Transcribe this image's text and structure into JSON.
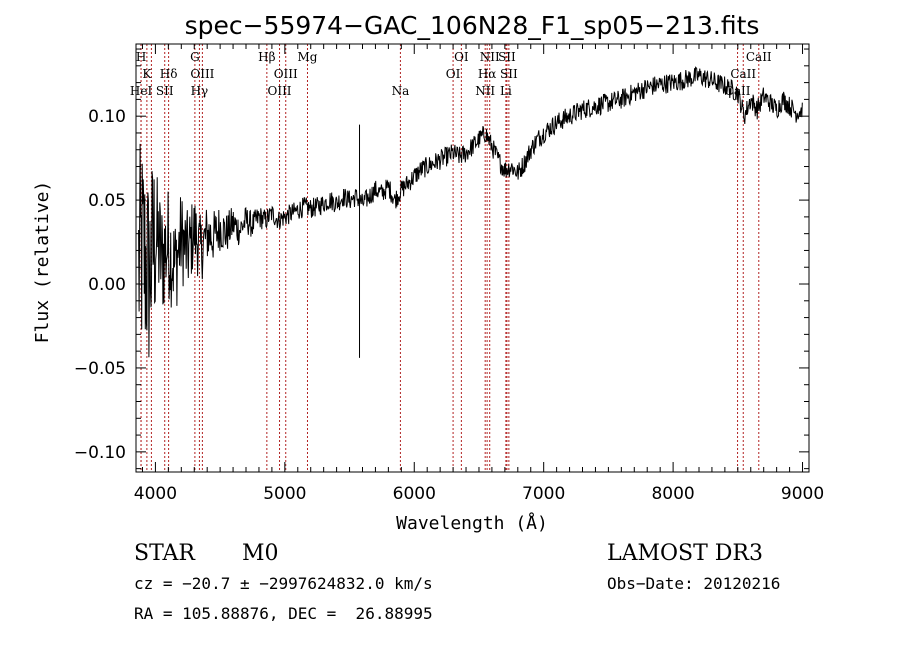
{
  "chart_data": {
    "type": "line",
    "title": "spec−55974−GAC_106N28_F1_sp05−213.fits",
    "xlabel": "Wavelength (Å)",
    "ylabel": "Flux (relative)",
    "xlim": [
      3850,
      9050
    ],
    "ylim": [
      -0.112,
      0.143
    ],
    "xticks": [
      4000,
      5000,
      6000,
      7000,
      8000,
      9000
    ],
    "yticks": [
      -0.1,
      -0.05,
      0.0,
      0.05,
      0.1
    ],
    "xtick_labels": [
      "4000",
      "5000",
      "6000",
      "7000",
      "8000",
      "9000"
    ],
    "ytick_labels": [
      "−0.10",
      "−0.05",
      "0.00",
      "0.05",
      "0.10"
    ],
    "spectrum": {
      "x": [
        3870,
        3900,
        3950,
        4000,
        4050,
        4100,
        4150,
        4200,
        4250,
        4300,
        4350,
        4400,
        4450,
        4500,
        4550,
        4600,
        4650,
        4700,
        4750,
        4800,
        4850,
        4900,
        4950,
        5000,
        5050,
        5100,
        5150,
        5200,
        5250,
        5300,
        5350,
        5400,
        5450,
        5500,
        5550,
        5600,
        5650,
        5700,
        5750,
        5800,
        5850,
        5900,
        5950,
        6000,
        6050,
        6100,
        6150,
        6200,
        6250,
        6300,
        6350,
        6400,
        6450,
        6500,
        6550,
        6600,
        6650,
        6700,
        6750,
        6800,
        6850,
        6900,
        6950,
        7000,
        7100,
        7200,
        7300,
        7400,
        7500,
        7600,
        7700,
        7800,
        7900,
        8000,
        8100,
        8200,
        8300,
        8400,
        8500,
        8550,
        8600,
        8650,
        8700,
        8750,
        8800,
        8850,
        8900,
        8950,
        9000
      ],
      "y": [
        0.01,
        0.02,
        0.005,
        0.03,
        0.015,
        0.025,
        0.01,
        0.028,
        0.018,
        0.032,
        0.02,
        0.03,
        0.028,
        0.034,
        0.03,
        0.036,
        0.032,
        0.038,
        0.035,
        0.04,
        0.038,
        0.042,
        0.038,
        0.04,
        0.042,
        0.044,
        0.046,
        0.045,
        0.046,
        0.048,
        0.05,
        0.048,
        0.052,
        0.05,
        0.052,
        0.048,
        0.052,
        0.056,
        0.054,
        0.058,
        0.05,
        0.056,
        0.06,
        0.064,
        0.068,
        0.07,
        0.072,
        0.074,
        0.076,
        0.078,
        0.076,
        0.078,
        0.082,
        0.086,
        0.09,
        0.082,
        0.074,
        0.068,
        0.07,
        0.066,
        0.072,
        0.08,
        0.086,
        0.09,
        0.096,
        0.1,
        0.104,
        0.106,
        0.108,
        0.11,
        0.114,
        0.117,
        0.119,
        0.12,
        0.122,
        0.124,
        0.121,
        0.118,
        0.114,
        0.1,
        0.11,
        0.104,
        0.112,
        0.108,
        0.104,
        0.11,
        0.106,
        0.102,
        0.104
      ],
      "noise_amplitude_blue": 0.045,
      "noise_amplitude_red": 0.006,
      "spike": {
        "x": 5577,
        "ymin": -0.044,
        "ymax": 0.095
      }
    },
    "lines": [
      {
        "x": 3889,
        "label": "H",
        "row": 1
      },
      {
        "x": 3934,
        "label": "K",
        "row": 2
      },
      {
        "x": 3889,
        "label": "HeI",
        "row": 3
      },
      {
        "x": 3969,
        "label": "",
        "row": 0
      },
      {
        "x": 4072,
        "label": "SII",
        "row": 3
      },
      {
        "x": 4102,
        "label": "Hδ",
        "row": 2
      },
      {
        "x": 4305,
        "label": "G",
        "row": 1
      },
      {
        "x": 4340,
        "label": "Hγ",
        "row": 3
      },
      {
        "x": 4363,
        "label": "OIII",
        "row": 2
      },
      {
        "x": 4861,
        "label": "Hβ",
        "row": 1
      },
      {
        "x": 4959,
        "label": "OIII",
        "row": 3
      },
      {
        "x": 5007,
        "label": "OIII",
        "row": 2
      },
      {
        "x": 5175,
        "label": "Mg",
        "row": 1
      },
      {
        "x": 5893,
        "label": "Na",
        "row": 3
      },
      {
        "x": 6300,
        "label": "OI",
        "row": 2
      },
      {
        "x": 6364,
        "label": "OI",
        "row": 1
      },
      {
        "x": 6548,
        "label": "NII",
        "row": 3
      },
      {
        "x": 6563,
        "label": "Hα",
        "row": 2
      },
      {
        "x": 6583,
        "label": "NII",
        "row": 1
      },
      {
        "x": 6708,
        "label": "Li",
        "row": 3
      },
      {
        "x": 6716,
        "label": "SII",
        "row": 1
      },
      {
        "x": 6731,
        "label": "SII",
        "row": 2
      },
      {
        "x": 8498,
        "label": "CaII",
        "row": 3
      },
      {
        "x": 8542,
        "label": "CaII",
        "row": 2
      },
      {
        "x": 8662,
        "label": "CaII",
        "row": 1
      }
    ]
  },
  "info": {
    "object_class": "STAR",
    "subclass": "M0",
    "survey": "LAMOST DR3",
    "redshift_line": "cz = −20.7 ± −2997624832.0 km/s",
    "obs_date": "Obs−Date: 20120216",
    "coords": "RA = 105.88876, DEC =  26.88995"
  },
  "colors": {
    "spectrum": "#000000",
    "line_markers": "#b22222",
    "axes": "#000000"
  }
}
